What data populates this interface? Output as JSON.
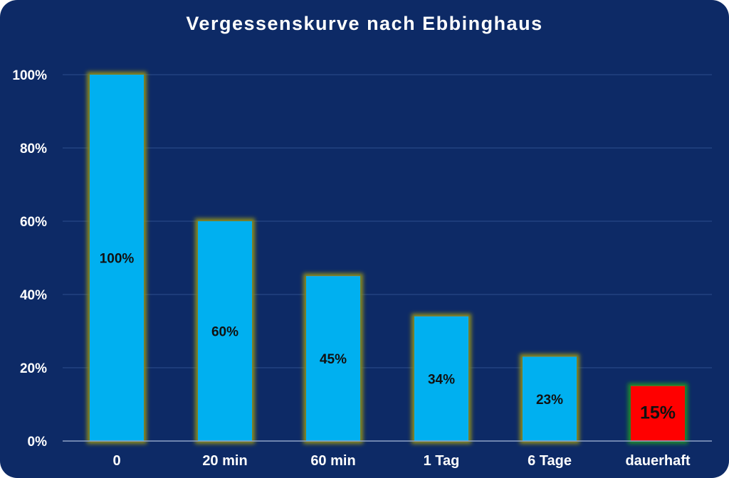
{
  "chart_data": {
    "type": "bar",
    "title": "Vergessenskurve nach Ebbinghaus",
    "xlabel": "",
    "ylabel": "",
    "categories": [
      "0",
      "20 min",
      "60 min",
      "1 Tag",
      "6 Tage",
      "dauerhaft"
    ],
    "values": [
      100,
      60,
      45,
      34,
      23,
      15
    ],
    "data_labels": [
      "100%",
      "60%",
      "45%",
      "34%",
      "23%",
      "15%"
    ],
    "ylim": [
      0,
      100
    ],
    "yticks": [
      0,
      20,
      40,
      60,
      80,
      100
    ],
    "ytick_labels": [
      "0%",
      "20%",
      "40%",
      "60%",
      "80%",
      "100%"
    ],
    "grid": true,
    "legend": "none",
    "colors": {
      "background": "#0d2a66",
      "bar": "#00b0f0",
      "bar_glow": "#8a8a1e",
      "highlight_bar": "#ff0000",
      "highlight_glow": "#1f8a2a",
      "gridline": "#2d4f8f",
      "text": "#ffffff",
      "data_label": "#111111"
    },
    "highlight_index": 5
  }
}
